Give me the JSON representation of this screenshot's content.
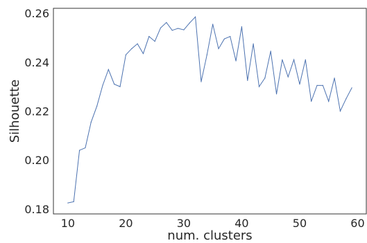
{
  "chart_data": {
    "type": "line",
    "xlabel": "num. clusters",
    "ylabel": "Silhouette",
    "xlim": [
      7.5,
      61.5
    ],
    "ylim": [
      0.178,
      0.262
    ],
    "xticks": [
      10,
      20,
      30,
      40,
      50,
      60
    ],
    "yticks": [
      0.18,
      0.2,
      0.22,
      0.24,
      0.26
    ],
    "grid": false,
    "line_color": "#4c72b0",
    "series": [
      {
        "x": [
          10,
          11,
          12,
          13,
          14,
          15,
          16,
          17,
          18,
          19,
          20,
          21,
          22,
          23,
          24,
          25,
          26,
          27,
          28,
          29,
          30,
          31,
          32,
          33,
          34,
          35,
          36,
          37,
          38,
          39,
          40,
          41,
          42,
          43,
          44,
          45,
          46,
          47,
          48,
          49,
          50,
          51,
          52,
          53,
          54,
          55,
          56,
          57,
          58,
          59
        ],
        "y": [
          0.1825,
          0.183,
          0.204,
          0.205,
          0.2155,
          0.222,
          0.2305,
          0.237,
          0.231,
          0.23,
          0.243,
          0.2455,
          0.2475,
          0.2435,
          0.2505,
          0.2485,
          0.254,
          0.2562,
          0.253,
          0.2538,
          0.2532,
          0.256,
          0.2585,
          0.232,
          0.243,
          0.2555,
          0.2455,
          0.2495,
          0.2505,
          0.2405,
          0.2545,
          0.2325,
          0.2475,
          0.23,
          0.2335,
          0.2445,
          0.227,
          0.241,
          0.234,
          0.241,
          0.231,
          0.241,
          0.224,
          0.2305,
          0.2305,
          0.224,
          0.2335,
          0.22,
          0.225,
          0.2295
        ]
      }
    ]
  }
}
